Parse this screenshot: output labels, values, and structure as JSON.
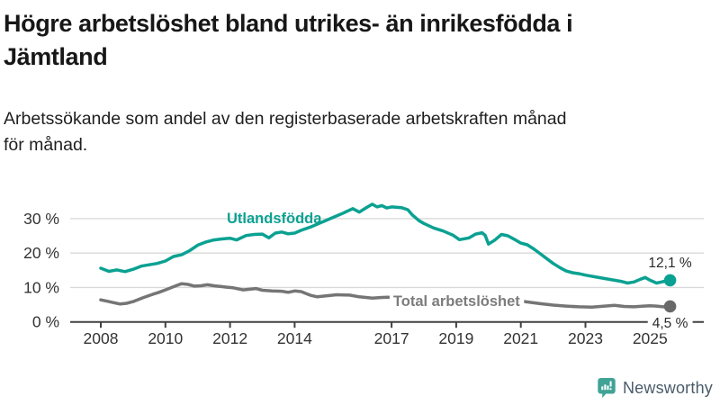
{
  "header": {
    "title_line1": "Högre arbetslöshet bland utrikes- än inrikesfödda i",
    "title_line2": "Jämtland",
    "subtitle_line1": "Arbetssökande som andel av den registerbaserade arbetskraften månad",
    "subtitle_line2": "för månad."
  },
  "chart_data": {
    "type": "line",
    "title": "Högre arbetslöshet bland utrikes- än inrikesfödda i Jämtland",
    "subtitle": "Arbetssökande som andel av den registerbaserade arbetskraften månad för månad.",
    "x_unit": "year-month",
    "x_range": [
      2008.0,
      2025.9
    ],
    "ylim": [
      0,
      36
    ],
    "grid": true,
    "x_ticks": [
      2008,
      2010,
      2012,
      2014,
      2017,
      2019,
      2021,
      2023,
      2025
    ],
    "y_ticks": [
      0,
      10,
      20,
      30
    ],
    "y_tick_suffix": " %",
    "colors": {
      "grid": "#d9d9d9",
      "axis": "#404040",
      "tick_text": "#333333",
      "end_label_text": "#2b2b2b"
    },
    "series": [
      {
        "name": "Total arbetslöshet",
        "color": "#757575",
        "dot_color": "#696969",
        "label_color": "#7c7c7c",
        "name_label_xy": [
          2017.05,
          4.6
        ],
        "name_label_bg": true,
        "end_label": "4,5 %",
        "end_label_side": "below",
        "end_label_bg": true,
        "points": [
          [
            2008.0,
            6.4
          ],
          [
            2008.2,
            6.0
          ],
          [
            2008.4,
            5.6
          ],
          [
            2008.6,
            5.2
          ],
          [
            2008.8,
            5.4
          ],
          [
            2009.0,
            5.9
          ],
          [
            2009.3,
            7.0
          ],
          [
            2009.6,
            8.0
          ],
          [
            2009.8,
            8.6
          ],
          [
            2010.0,
            9.3
          ],
          [
            2010.3,
            10.4
          ],
          [
            2010.5,
            11.1
          ],
          [
            2010.7,
            10.9
          ],
          [
            2010.9,
            10.4
          ],
          [
            2011.1,
            10.5
          ],
          [
            2011.3,
            10.8
          ],
          [
            2011.5,
            10.5
          ],
          [
            2011.7,
            10.3
          ],
          [
            2011.9,
            10.1
          ],
          [
            2012.1,
            9.9
          ],
          [
            2012.4,
            9.3
          ],
          [
            2012.6,
            9.5
          ],
          [
            2012.8,
            9.7
          ],
          [
            2013.0,
            9.2
          ],
          [
            2013.3,
            9.0
          ],
          [
            2013.6,
            8.9
          ],
          [
            2013.8,
            8.6
          ],
          [
            2014.0,
            9.0
          ],
          [
            2014.2,
            8.8
          ],
          [
            2014.5,
            7.7
          ],
          [
            2014.7,
            7.3
          ],
          [
            2015.0,
            7.6
          ],
          [
            2015.3,
            7.9
          ],
          [
            2015.7,
            7.8
          ],
          [
            2016.0,
            7.3
          ],
          [
            2016.4,
            6.9
          ],
          [
            2016.7,
            7.1
          ],
          [
            2016.9,
            7.2
          ],
          [
            2017.2,
            7.0
          ],
          [
            2017.6,
            6.7
          ],
          [
            2018.0,
            6.3
          ],
          [
            2018.5,
            6.0
          ],
          [
            2019.0,
            5.7
          ],
          [
            2019.5,
            5.5
          ],
          [
            2020.0,
            6.0
          ],
          [
            2020.4,
            6.6
          ],
          [
            2020.8,
            6.3
          ],
          [
            2021.2,
            5.8
          ],
          [
            2021.6,
            5.3
          ],
          [
            2022.0,
            4.9
          ],
          [
            2022.4,
            4.6
          ],
          [
            2022.8,
            4.4
          ],
          [
            2023.2,
            4.3
          ],
          [
            2023.6,
            4.6
          ],
          [
            2023.9,
            4.8
          ],
          [
            2024.2,
            4.5
          ],
          [
            2024.5,
            4.4
          ],
          [
            2024.8,
            4.6
          ],
          [
            2025.0,
            4.7
          ],
          [
            2025.2,
            4.6
          ],
          [
            2025.4,
            4.4
          ],
          [
            2025.62,
            4.5
          ]
        ]
      },
      {
        "name": "Utlandsfödda",
        "color": "#0ba192",
        "dot_color": "#0ba192",
        "label_color": "#0ba192",
        "name_label_xy": [
          2011.9,
          28.7
        ],
        "name_label_bg": false,
        "end_label": "12,1 %",
        "end_label_side": "above",
        "end_label_bg": false,
        "points": [
          [
            2008.0,
            15.6
          ],
          [
            2008.25,
            14.7
          ],
          [
            2008.5,
            15.1
          ],
          [
            2008.75,
            14.6
          ],
          [
            2009.0,
            15.3
          ],
          [
            2009.25,
            16.2
          ],
          [
            2009.5,
            16.6
          ],
          [
            2009.75,
            17.0
          ],
          [
            2010.0,
            17.7
          ],
          [
            2010.25,
            19.0
          ],
          [
            2010.5,
            19.5
          ],
          [
            2010.75,
            20.7
          ],
          [
            2011.0,
            22.3
          ],
          [
            2011.25,
            23.2
          ],
          [
            2011.5,
            23.8
          ],
          [
            2011.75,
            24.1
          ],
          [
            2012.0,
            24.3
          ],
          [
            2012.2,
            23.8
          ],
          [
            2012.5,
            25.1
          ],
          [
            2012.75,
            25.4
          ],
          [
            2013.0,
            25.5
          ],
          [
            2013.2,
            24.4
          ],
          [
            2013.4,
            25.8
          ],
          [
            2013.6,
            26.1
          ],
          [
            2013.8,
            25.6
          ],
          [
            2014.0,
            25.8
          ],
          [
            2014.2,
            26.6
          ],
          [
            2014.5,
            27.6
          ],
          [
            2014.75,
            28.6
          ],
          [
            2015.0,
            29.6
          ],
          [
            2015.25,
            30.6
          ],
          [
            2015.5,
            31.6
          ],
          [
            2015.8,
            32.9
          ],
          [
            2016.0,
            31.9
          ],
          [
            2016.2,
            33.1
          ],
          [
            2016.4,
            34.2
          ],
          [
            2016.55,
            33.4
          ],
          [
            2016.7,
            33.8
          ],
          [
            2016.85,
            33.1
          ],
          [
            2017.0,
            33.4
          ],
          [
            2017.3,
            33.2
          ],
          [
            2017.5,
            32.6
          ],
          [
            2017.65,
            31.0
          ],
          [
            2017.85,
            29.4
          ],
          [
            2018.0,
            28.6
          ],
          [
            2018.3,
            27.3
          ],
          [
            2018.6,
            26.4
          ],
          [
            2018.9,
            25.2
          ],
          [
            2019.1,
            23.9
          ],
          [
            2019.4,
            24.4
          ],
          [
            2019.6,
            25.5
          ],
          [
            2019.8,
            25.9
          ],
          [
            2019.9,
            25.1
          ],
          [
            2020.0,
            22.6
          ],
          [
            2020.2,
            23.8
          ],
          [
            2020.4,
            25.4
          ],
          [
            2020.6,
            25.0
          ],
          [
            2020.8,
            24.0
          ],
          [
            2021.0,
            22.9
          ],
          [
            2021.2,
            22.4
          ],
          [
            2021.4,
            21.2
          ],
          [
            2021.6,
            19.8
          ],
          [
            2021.8,
            18.4
          ],
          [
            2022.0,
            17.0
          ],
          [
            2022.2,
            15.8
          ],
          [
            2022.4,
            14.8
          ],
          [
            2022.6,
            14.3
          ],
          [
            2022.8,
            14.0
          ],
          [
            2023.0,
            13.6
          ],
          [
            2023.3,
            13.1
          ],
          [
            2023.6,
            12.6
          ],
          [
            2023.9,
            12.1
          ],
          [
            2024.1,
            11.8
          ],
          [
            2024.3,
            11.3
          ],
          [
            2024.5,
            11.6
          ],
          [
            2024.7,
            12.4
          ],
          [
            2024.85,
            12.9
          ],
          [
            2025.0,
            12.1
          ],
          [
            2025.2,
            11.3
          ],
          [
            2025.4,
            11.7
          ],
          [
            2025.62,
            12.1
          ]
        ]
      }
    ]
  },
  "footer": {
    "brand": "Newsworthy",
    "brand_icon": "bar-chart-speech-bubble-icon",
    "brand_icon_color": "#3fa396",
    "brand_text_color": "#4a5b6a"
  }
}
